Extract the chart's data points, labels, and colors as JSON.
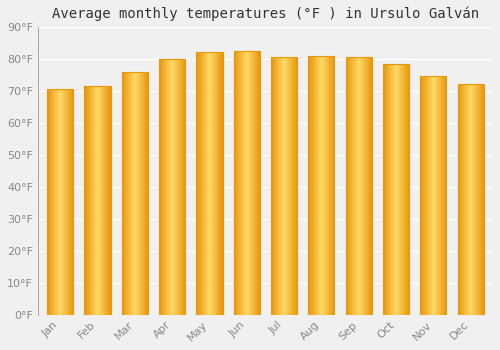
{
  "title": "Average monthly temperatures (°F ) in Ursulo Galván",
  "months": [
    "Jan",
    "Feb",
    "Mar",
    "Apr",
    "May",
    "Jun",
    "Jul",
    "Aug",
    "Sep",
    "Oct",
    "Nov",
    "Dec"
  ],
  "values": [
    70.5,
    71.5,
    76.0,
    80.0,
    82.0,
    82.5,
    80.5,
    81.0,
    80.5,
    78.5,
    74.5,
    72.0
  ],
  "bar_color_center": "#FFD966",
  "bar_color_edge": "#E8960A",
  "ylim": [
    0,
    90
  ],
  "yticks": [
    0,
    10,
    20,
    30,
    40,
    50,
    60,
    70,
    80,
    90
  ],
  "ytick_labels": [
    "0°F",
    "10°F",
    "20°F",
    "30°F",
    "40°F",
    "50°F",
    "60°F",
    "70°F",
    "80°F",
    "90°F"
  ],
  "background_color": "#f0f0f0",
  "grid_color": "#ffffff",
  "title_fontsize": 10,
  "tick_fontsize": 8,
  "bar_width": 0.7
}
